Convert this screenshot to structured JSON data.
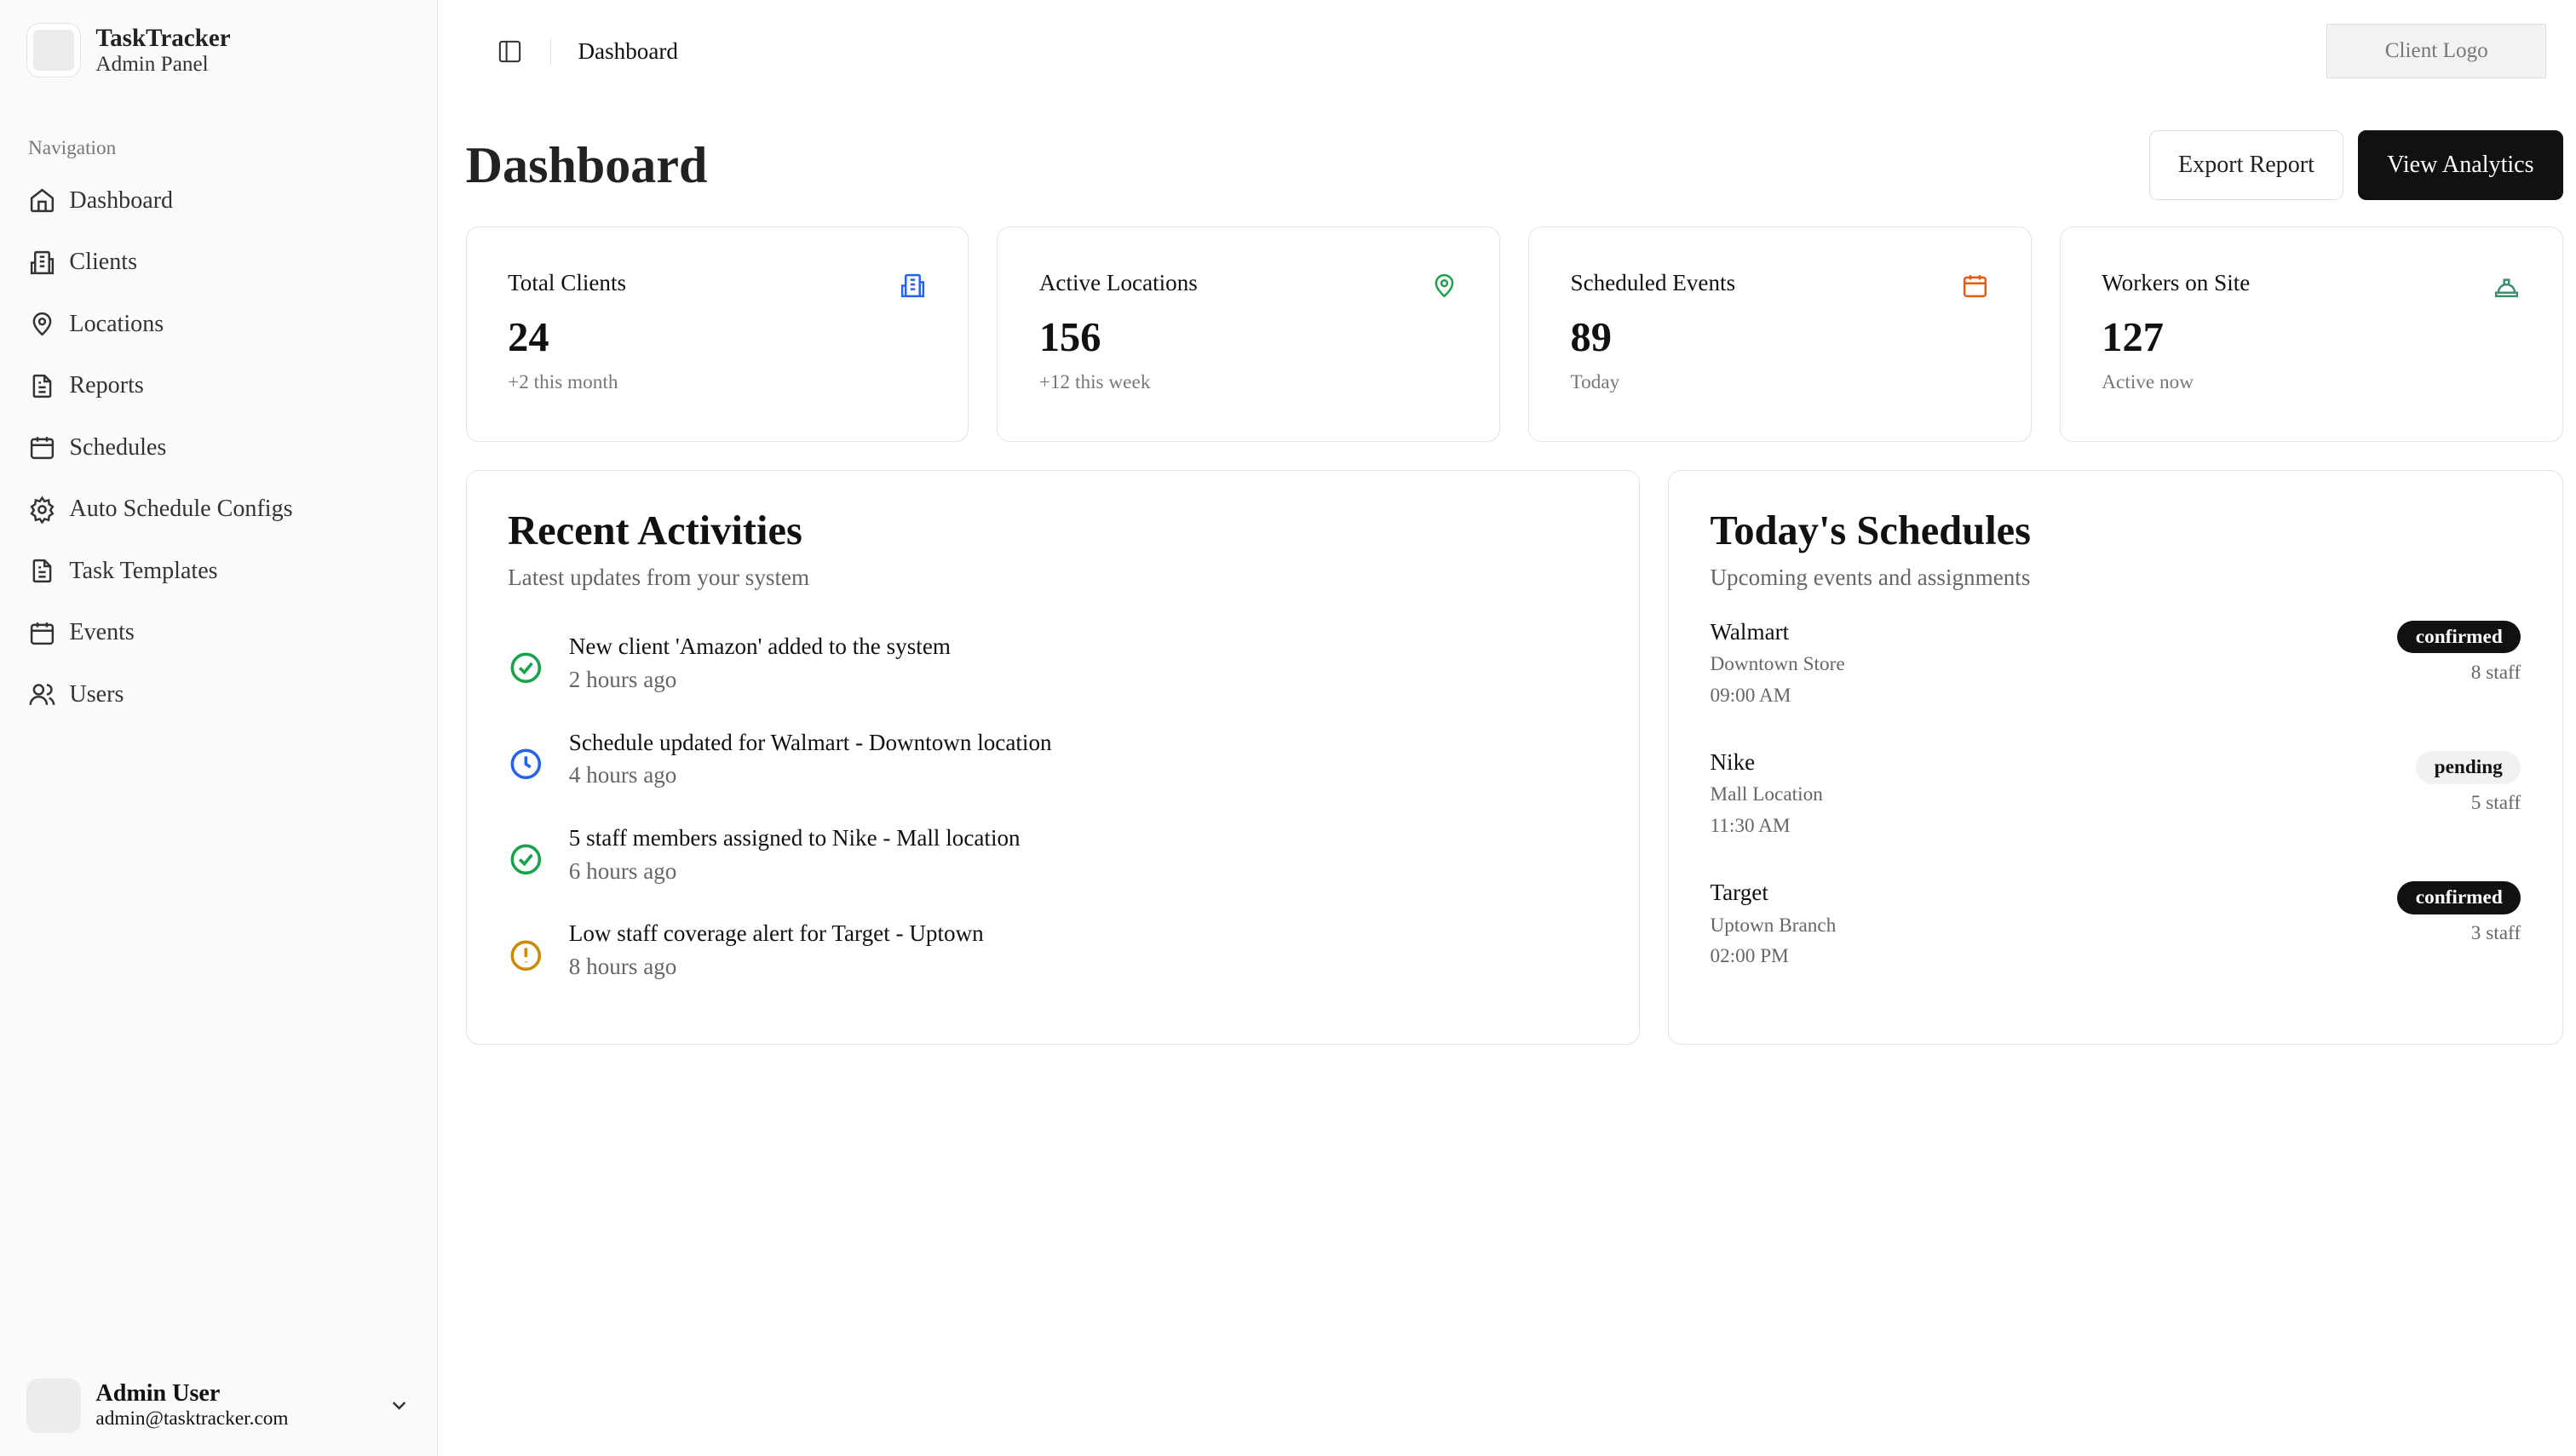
{
  "app": {
    "name": "TaskTracker",
    "subtitle": "Admin Panel"
  },
  "sidebar": {
    "section_label": "Navigation",
    "items": [
      {
        "label": "Dashboard",
        "icon": "home-icon"
      },
      {
        "label": "Clients",
        "icon": "building-icon"
      },
      {
        "label": "Locations",
        "icon": "map-pin-icon"
      },
      {
        "label": "Reports",
        "icon": "file-text-icon"
      },
      {
        "label": "Schedules",
        "icon": "calendar-icon"
      },
      {
        "label": "Auto Schedule Configs",
        "icon": "gear-icon"
      },
      {
        "label": "Task Templates",
        "icon": "file-text-icon"
      },
      {
        "label": "Events",
        "icon": "calendar-icon"
      },
      {
        "label": "Users",
        "icon": "users-icon"
      }
    ]
  },
  "user": {
    "name": "Admin User",
    "email": "admin@tasktracker.com"
  },
  "topbar": {
    "breadcrumb": "Dashboard",
    "client_logo": "Client Logo"
  },
  "page": {
    "title": "Dashboard",
    "export_label": "Export Report",
    "analytics_label": "View Analytics"
  },
  "stats": [
    {
      "label": "Total Clients",
      "value": "24",
      "sub": "+2 this month",
      "icon": "building-icon",
      "color": "#2563eb"
    },
    {
      "label": "Active Locations",
      "value": "156",
      "sub": "+12 this week",
      "icon": "map-pin-icon",
      "color": "#16a34a"
    },
    {
      "label": "Scheduled Events",
      "value": "89",
      "sub": "Today",
      "icon": "calendar-icon",
      "color": "#ea580c"
    },
    {
      "label": "Workers on Site",
      "value": "127",
      "sub": "Active now",
      "icon": "hard-hat-icon",
      "color": "#3b8f6b"
    }
  ],
  "activities": {
    "title": "Recent Activities",
    "subtitle": "Latest updates from your system",
    "items": [
      {
        "text": "New client 'Amazon' added to the system",
        "time": "2 hours ago",
        "icon": "check-circle-icon",
        "color": "#16a34a"
      },
      {
        "text": "Schedule updated for Walmart - Downtown location",
        "time": "4 hours ago",
        "icon": "clock-icon",
        "color": "#2563eb"
      },
      {
        "text": "5 staff members assigned to Nike - Mall location",
        "time": "6 hours ago",
        "icon": "check-circle-icon",
        "color": "#16a34a"
      },
      {
        "text": "Low staff coverage alert for Target - Uptown",
        "time": "8 hours ago",
        "icon": "alert-circle-icon",
        "color": "#ca8a04"
      }
    ]
  },
  "schedules": {
    "title": "Today's Schedules",
    "subtitle": "Upcoming events and assignments",
    "items": [
      {
        "client": "Walmart",
        "location": "Downtown Store",
        "time": "09:00 AM",
        "status": "confirmed",
        "staff": "8 staff"
      },
      {
        "client": "Nike",
        "location": "Mall Location",
        "time": "11:30 AM",
        "status": "pending",
        "staff": "5 staff"
      },
      {
        "client": "Target",
        "location": "Uptown Branch",
        "time": "02:00 PM",
        "status": "confirmed",
        "staff": "3 staff"
      }
    ]
  }
}
